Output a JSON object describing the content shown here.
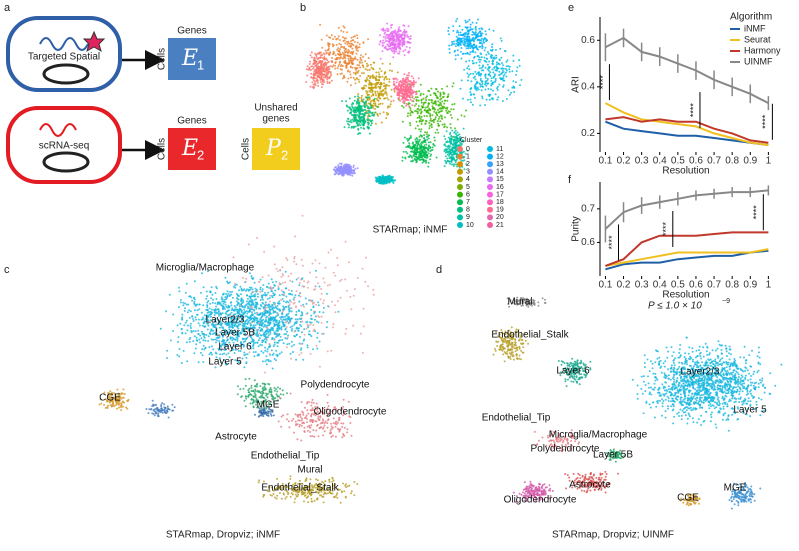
{
  "panel_labels": [
    "a",
    "b",
    "c",
    "d",
    "e",
    "f"
  ],
  "diagram": {
    "spatial": {
      "label": "Targeted Spatial",
      "matrix": "E",
      "subscript": "1",
      "rows": "Cells",
      "cols": "Genes"
    },
    "scrna": {
      "label": "scRNA-seq",
      "matrix": "E",
      "subscript": "2",
      "rows": "Cells",
      "cols": "Genes"
    },
    "unshared": {
      "matrix": "P",
      "subscript": "2",
      "rows": "Cells",
      "cols": [
        "Unshared",
        "genes"
      ]
    }
  },
  "umap_b": {
    "caption": "STARmap; iNMF",
    "legend_title": "Cluster",
    "clusters": [
      "0",
      "1",
      "2",
      "3",
      "4",
      "5",
      "6",
      "7",
      "8",
      "9",
      "10",
      "11",
      "12",
      "13",
      "14",
      "15",
      "16",
      "17",
      "18",
      "19",
      "20",
      "21"
    ],
    "colors": [
      "#f8766d",
      "#ea8331",
      "#d89000",
      "#c09b00",
      "#a3a500",
      "#7cae00",
      "#39b600",
      "#00bb4e",
      "#00bf7d",
      "#00c1a3",
      "#00bfc4",
      "#00bae0",
      "#00b0f6",
      "#35a2ff",
      "#9590ff",
      "#c77cff",
      "#e76bf3",
      "#fa62db",
      "#ff62bc",
      "#ff6c91",
      "#e06cb0",
      "#f05fa0"
    ]
  },
  "umap_c": {
    "caption": "STARmap, Dropviz; iNMF",
    "labels": [
      "Microglia/Macrophage",
      "Layer2/3",
      "Layer 5B",
      "Layer 6",
      "Layer 5",
      "CGE",
      "MGE",
      "Polydendrocyte",
      "Oligodendrocyte",
      "Astrocyte",
      "Endothelial_Tip",
      "Mural",
      "Endothelial_Stalk"
    ]
  },
  "umap_d": {
    "caption": "STARmap, Dropviz; UINMF",
    "labels": [
      "Mural",
      "Endothelial_Stalk",
      "Layer 6",
      "Layer2/3",
      "Endothelial_Tip",
      "Microglia/Macrophage",
      "Polydendrocyte",
      "Layer 5B",
      "Layer 5",
      "Astrocyte",
      "Oligodendrocyte",
      "CGE",
      "MGE"
    ]
  },
  "chart_data": [
    {
      "type": "line",
      "ylabel": "ARI",
      "xlabel": "Resolution",
      "legend_title": "Algorithm",
      "x": [
        0.1,
        0.2,
        0.3,
        0.4,
        0.5,
        0.6,
        0.7,
        0.8,
        0.9,
        1
      ],
      "xlim": [
        0.07,
        1.02
      ],
      "xticks": [
        0.1,
        0.2,
        0.3,
        0.4,
        0.5,
        0.6,
        0.7,
        0.8,
        0.9,
        1
      ],
      "ylim": [
        0.12,
        0.7
      ],
      "yticks": [
        0.2,
        0.4,
        0.6
      ],
      "series": [
        {
          "name": "iNMF",
          "color": "#1f5fa8",
          "values": [
            0.25,
            0.22,
            0.21,
            0.2,
            0.19,
            0.19,
            0.18,
            0.17,
            0.16,
            0.15
          ]
        },
        {
          "name": "Seurat",
          "color": "#f0c020",
          "values": [
            0.33,
            0.29,
            0.26,
            0.25,
            0.24,
            0.23,
            0.2,
            0.18,
            0.16,
            0.15
          ]
        },
        {
          "name": "Harmony",
          "color": "#c0392b",
          "values": [
            0.26,
            0.27,
            0.25,
            0.26,
            0.25,
            0.25,
            0.22,
            0.2,
            0.17,
            0.16
          ]
        },
        {
          "name": "UINMF",
          "color": "#888888",
          "values": [
            0.57,
            0.61,
            0.55,
            0.53,
            0.5,
            0.47,
            0.43,
            0.4,
            0.37,
            0.33
          ],
          "errors": [
            0.06,
            0.04,
            0.04,
            0.04,
            0.04,
            0.04,
            0.04,
            0.04,
            0.04,
            0.03
          ]
        }
      ],
      "annotations": [
        "****",
        "****",
        "****"
      ]
    },
    {
      "type": "line",
      "ylabel": "Purity",
      "xlabel": "Resolution",
      "x": [
        0.1,
        0.2,
        0.3,
        0.4,
        0.5,
        0.6,
        0.7,
        0.8,
        0.9,
        1
      ],
      "xlim": [
        0.07,
        1.02
      ],
      "xticks": [
        0.1,
        0.2,
        0.3,
        0.4,
        0.5,
        0.6,
        0.7,
        0.8,
        0.9,
        1
      ],
      "ylim": [
        0.5,
        0.78
      ],
      "yticks": [
        0.6,
        0.7
      ],
      "series": [
        {
          "name": "iNMF",
          "color": "#1f5fa8",
          "values": [
            0.52,
            0.535,
            0.54,
            0.54,
            0.55,
            0.555,
            0.56,
            0.56,
            0.57,
            0.575
          ]
        },
        {
          "name": "Seurat",
          "color": "#f0c020",
          "values": [
            0.53,
            0.54,
            0.55,
            0.56,
            0.57,
            0.57,
            0.57,
            0.57,
            0.57,
            0.58
          ]
        },
        {
          "name": "Harmony",
          "color": "#c0392b",
          "values": [
            0.53,
            0.55,
            0.6,
            0.62,
            0.62,
            0.62,
            0.625,
            0.63,
            0.63,
            0.63
          ]
        },
        {
          "name": "UINMF",
          "color": "#888888",
          "values": [
            0.64,
            0.69,
            0.71,
            0.72,
            0.73,
            0.74,
            0.745,
            0.75,
            0.75,
            0.755
          ],
          "errors": [
            0.04,
            0.03,
            0.025,
            0.02,
            0.02,
            0.015,
            0.015,
            0.015,
            0.015,
            0.015
          ]
        }
      ],
      "annotations": [
        "****",
        "****",
        "****"
      ],
      "p_label": "P ≤ 1.0 × 10",
      "p_exp": "−9"
    }
  ]
}
